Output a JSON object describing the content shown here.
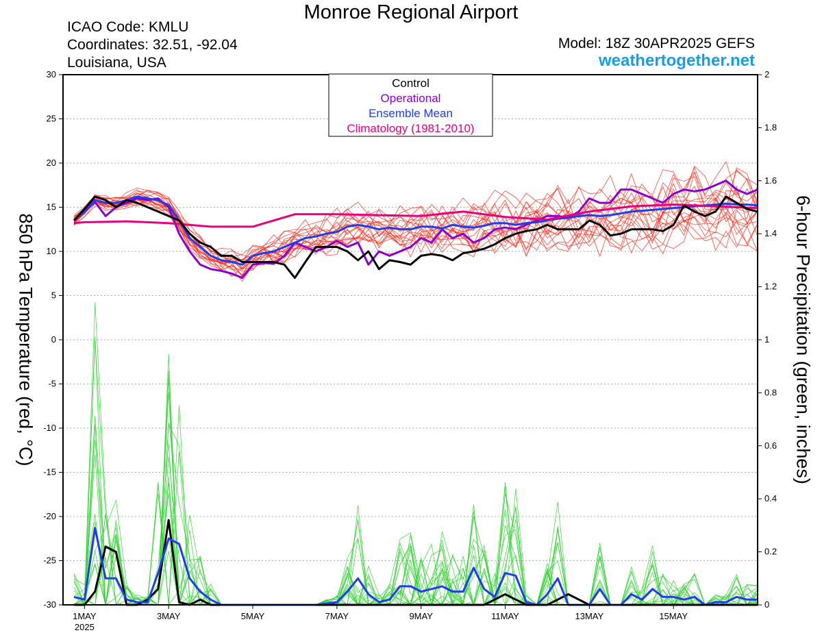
{
  "header": {
    "title": "Monroe Regional Airport",
    "icao": "ICAO Code: KMLU",
    "coordinates": "Coordinates: 32.51, -92.04",
    "location": "Louisiana, USA",
    "model": "Model: 18Z 30APR2025 GEFS",
    "site": "weathertogether.net"
  },
  "chart_data": {
    "type": "line",
    "title": "Monroe Regional Airport",
    "ylabel": "850 hPa Temperature (red, °C)",
    "y2label": "6-hour Precipitation (green, inches)",
    "ylim": [
      -30,
      30
    ],
    "y2lim": [
      0,
      2
    ],
    "yticks": [
      "30",
      "25",
      "20",
      "15",
      "10",
      "5",
      "0",
      "-5",
      "-10",
      "-15",
      "-20",
      "-25",
      "-30"
    ],
    "y2ticks": [
      "2",
      "1.8",
      "1.6",
      "1.4",
      "1.2",
      "1",
      "0.8",
      "0.6",
      "0.4",
      "0.2",
      "0"
    ],
    "xticks": [
      {
        "day": 1,
        "label": "1MAY",
        "sub": "2025"
      },
      {
        "day": 3,
        "label": "3MAY"
      },
      {
        "day": 5,
        "label": "5MAY"
      },
      {
        "day": 7,
        "label": "7MAY"
      },
      {
        "day": 9,
        "label": "9MAY"
      },
      {
        "day": 11,
        "label": "11MAY"
      },
      {
        "day": 13,
        "label": "13MAY"
      },
      {
        "day": 15,
        "label": "15MAY"
      }
    ],
    "x_day_range": [
      0.75,
      17.0
    ],
    "grid": true,
    "legend": {
      "placement": "top-center",
      "entries": [
        {
          "name": "Control",
          "color": "#000000"
        },
        {
          "name": "Operational",
          "color": "#8a00d4"
        },
        {
          "name": "Ensemble Mean",
          "color": "#1e3cf0"
        },
        {
          "name": "Climatology (1981-2010)",
          "color": "#e6007e"
        }
      ]
    },
    "colors": {
      "members_temp": "#ff2a1a",
      "members_precip": "#2fd12f"
    },
    "temperature_series": [
      {
        "name": "Operational",
        "color": "#8a00d4",
        "x": [
          0.75,
          1.0,
          1.25,
          1.5,
          1.75,
          2.0,
          2.25,
          2.5,
          2.75,
          3.0,
          3.25,
          3.5,
          3.75,
          4.0,
          4.25,
          4.5,
          4.75,
          5.0,
          5.25,
          5.5,
          5.75,
          6.0,
          6.25,
          6.5,
          6.75,
          7.0,
          7.25,
          7.5,
          7.75,
          8.0,
          8.25,
          8.5,
          8.75,
          9.0,
          9.25,
          9.5,
          9.75,
          10.0,
          10.25,
          10.5,
          10.75,
          11.0,
          11.25,
          11.5,
          11.75,
          12.0,
          12.25,
          12.5,
          12.75,
          13.0,
          13.25,
          13.5,
          13.75,
          14.0,
          14.25,
          14.5,
          14.75,
          15.0,
          15.25,
          15.5,
          15.75,
          16.0,
          16.25,
          16.5,
          16.75,
          17.0
        ],
        "y": [
          13.5,
          14.5,
          15.6,
          14.0,
          15.0,
          15.5,
          16.0,
          15.8,
          16.0,
          15.0,
          12.0,
          10.0,
          8.5,
          8.0,
          7.8,
          7.5,
          7.0,
          8.5,
          8.7,
          8.6,
          9.5,
          11.0,
          10.5,
          10.0,
          10.5,
          11.2,
          10.5,
          11.0,
          8.5,
          10.0,
          9.5,
          10.0,
          10.5,
          11.5,
          11.0,
          12.5,
          11.5,
          12.0,
          11.0,
          11.5,
          12.5,
          12.7,
          12.5,
          13.0,
          13.5,
          14.0,
          14.0,
          13.8,
          14.5,
          16.0,
          15.5,
          15.5,
          17.0,
          17.0,
          16.5,
          16.0,
          15.5,
          16.5,
          17.0,
          16.8,
          17.0,
          17.5,
          18.0,
          17.0,
          16.5,
          17.0
        ]
      },
      {
        "name": "Ensemble Mean",
        "color": "#1e3cf0",
        "x": [
          0.75,
          1.0,
          1.25,
          1.5,
          1.75,
          2.0,
          2.25,
          2.5,
          2.75,
          3.0,
          3.25,
          3.5,
          3.75,
          4.0,
          4.25,
          4.5,
          4.75,
          5.0,
          5.25,
          5.5,
          5.75,
          6.0,
          6.25,
          6.5,
          6.75,
          7.0,
          7.25,
          7.5,
          7.75,
          8.0,
          8.25,
          8.5,
          8.75,
          9.0,
          9.25,
          9.5,
          9.75,
          10.0,
          10.25,
          10.5,
          10.75,
          11.0,
          11.25,
          11.5,
          11.75,
          12.0,
          12.25,
          12.5,
          12.75,
          13.0,
          13.25,
          13.5,
          13.75,
          14.0,
          14.25,
          14.5,
          14.75,
          15.0,
          15.25,
          15.5,
          15.75,
          16.0,
          16.25,
          16.5,
          16.75,
          17.0
        ],
        "y": [
          13.5,
          14.5,
          15.8,
          15.5,
          15.5,
          15.8,
          16.2,
          16.0,
          15.8,
          15.2,
          13.5,
          11.5,
          10.5,
          9.5,
          9.0,
          8.8,
          8.5,
          9.5,
          9.8,
          10.0,
          10.5,
          11.0,
          11.5,
          11.7,
          12.0,
          12.2,
          12.8,
          13.0,
          12.8,
          12.5,
          12.7,
          12.5,
          12.5,
          12.8,
          12.8,
          12.6,
          13.0,
          12.8,
          12.7,
          12.9,
          13.2,
          13.2,
          13.0,
          13.2,
          13.3,
          13.5,
          13.7,
          13.8,
          14.0,
          14.1,
          14.0,
          14.1,
          14.3,
          14.5,
          14.6,
          14.7,
          14.8,
          14.9,
          15.0,
          15.1,
          15.2,
          15.3,
          15.4,
          15.3,
          15.3,
          15.2
        ]
      },
      {
        "name": "Climatology (1981-2010)",
        "color": "#e6007e",
        "x": [
          0.75,
          1.0,
          2.0,
          3.0,
          4.0,
          5.0,
          6.0,
          7.0,
          8.0,
          9.0,
          10.0,
          11.0,
          12.0,
          13.0,
          14.0,
          15.0,
          16.0,
          17.0
        ],
        "y": [
          13.2,
          13.3,
          13.4,
          13.2,
          12.8,
          12.8,
          14.2,
          14.2,
          14.1,
          14.0,
          14.5,
          13.9,
          13.6,
          14.5,
          15.1,
          15.3,
          15.1,
          14.9
        ]
      },
      {
        "name": "Control",
        "color": "#000000",
        "x": [
          0.75,
          1.0,
          1.25,
          1.5,
          1.75,
          2.0,
          2.25,
          2.5,
          2.75,
          3.0,
          3.25,
          3.5,
          3.75,
          4.0,
          4.25,
          4.5,
          4.75,
          5.0,
          5.25,
          5.5,
          5.75,
          6.0,
          6.25,
          6.5,
          6.75,
          7.0,
          7.25,
          7.5,
          7.75,
          8.0,
          8.25,
          8.5,
          8.75,
          9.0,
          9.25,
          9.5,
          9.75,
          10.0,
          10.25,
          10.5,
          10.75,
          11.0,
          11.25,
          11.5,
          11.75,
          12.0,
          12.25,
          12.5,
          12.75,
          13.0,
          13.25,
          13.5,
          13.75,
          14.0,
          14.25,
          14.5,
          14.75,
          15.0,
          15.25,
          15.5,
          15.75,
          16.0,
          16.25,
          16.5,
          16.75,
          17.0
        ],
        "y": [
          13.5,
          14.8,
          16.2,
          15.8,
          15.0,
          15.8,
          15.5,
          15.0,
          14.5,
          14.0,
          13.5,
          12.0,
          11.0,
          10.5,
          9.5,
          9.5,
          8.8,
          8.8,
          8.8,
          8.8,
          8.5,
          7.0,
          8.8,
          10.5,
          10.5,
          10.5,
          10.0,
          9.0,
          10.0,
          8.0,
          9.0,
          8.8,
          8.5,
          9.5,
          9.7,
          9.5,
          9.0,
          9.8,
          10.0,
          10.3,
          10.8,
          11.5,
          12.0,
          12.3,
          12.5,
          13.0,
          12.5,
          12.5,
          12.5,
          13.5,
          13.0,
          11.8,
          12.0,
          12.5,
          12.5,
          12.5,
          12.3,
          13.0,
          15.2,
          14.5,
          14.0,
          14.5,
          16.2,
          15.5,
          14.8,
          14.5
        ]
      }
    ],
    "precip_series": [
      {
        "name": "Control",
        "color": "#000000",
        "x": [
          0.75,
          1.0,
          1.25,
          1.5,
          1.75,
          2.0,
          2.25,
          2.5,
          2.75,
          3.0,
          3.25,
          3.5,
          3.75,
          4.0,
          4.25,
          6.0,
          9.0,
          10.0,
          10.5,
          11.0,
          11.5,
          12.0,
          12.5,
          13.0,
          17.0
        ],
        "y": [
          0.0,
          0.0,
          0.05,
          0.22,
          0.2,
          0.0,
          0.0,
          0.02,
          0.06,
          0.32,
          0.01,
          0.0,
          0.02,
          0.0,
          0.0,
          0.0,
          0.0,
          0.0,
          0.0,
          0.04,
          0.0,
          0.0,
          0.04,
          0.0,
          0.0
        ]
      },
      {
        "name": "Ensemble Mean",
        "color": "#1e3cf0",
        "x": [
          0.75,
          1.0,
          1.25,
          1.5,
          1.75,
          2.0,
          2.25,
          2.5,
          2.75,
          3.0,
          3.25,
          3.5,
          3.75,
          4.0,
          4.25,
          4.5,
          6.5,
          7.0,
          7.25,
          7.5,
          7.75,
          8.0,
          8.25,
          8.5,
          8.75,
          9.0,
          9.25,
          9.5,
          9.75,
          10.0,
          10.25,
          10.5,
          10.75,
          11.0,
          11.25,
          11.5,
          11.75,
          12.0,
          12.25,
          12.5,
          12.75,
          13.0,
          13.25,
          13.5,
          13.75,
          14.0,
          14.25,
          14.5,
          14.75,
          15.0,
          15.25,
          15.5,
          15.75,
          16.0,
          16.25,
          16.5,
          16.75,
          17.0
        ],
        "y": [
          0.03,
          0.02,
          0.29,
          0.1,
          0.1,
          0.02,
          0.01,
          0.01,
          0.12,
          0.25,
          0.23,
          0.1,
          0.05,
          0.02,
          0.0,
          0.0,
          0.0,
          0.01,
          0.05,
          0.1,
          0.04,
          0.01,
          0.02,
          0.07,
          0.07,
          0.05,
          0.06,
          0.07,
          0.05,
          0.05,
          0.14,
          0.06,
          0.03,
          0.12,
          0.11,
          0.01,
          0.0,
          0.04,
          0.1,
          0.0,
          0.0,
          0.0,
          0.06,
          0.0,
          0.0,
          0.04,
          0.02,
          0.06,
          0.03,
          0.03,
          0.02,
          0.03,
          0.0,
          0.01,
          0.01,
          0.03,
          0.02,
          0.02
        ]
      }
    ]
  }
}
